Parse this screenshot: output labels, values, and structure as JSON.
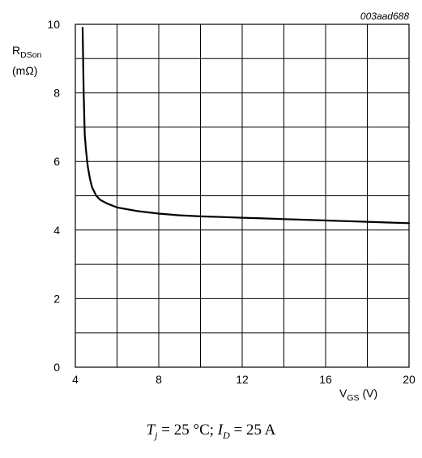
{
  "chart_data": {
    "type": "line",
    "reference_code": "003aad688",
    "ylabel": {
      "symbol": "R",
      "subscript": "DSon",
      "unit": "(mΩ)"
    },
    "xlabel": {
      "symbol": "V",
      "subscript": "GS",
      "unit": "(V)"
    },
    "xlim": [
      4,
      20
    ],
    "ylim": [
      0,
      10
    ],
    "x_ticks": [
      "4",
      "8",
      "12",
      "16",
      "20"
    ],
    "y_ticks": [
      "0",
      "2",
      "4",
      "6",
      "8",
      "10"
    ],
    "grid": true,
    "series": [
      {
        "x": [
          4.35,
          4.4,
          4.45,
          4.5,
          4.55,
          4.6,
          4.7,
          4.8,
          5.0,
          5.2,
          5.5,
          6.0,
          7.0,
          8.0,
          9.0,
          10.0,
          11.0,
          12.0,
          13.0,
          14.0,
          15.0,
          16.0,
          17.0,
          18.0,
          19.0,
          20.0
        ],
        "y": [
          9.9,
          8.0,
          6.8,
          6.4,
          6.1,
          5.85,
          5.5,
          5.25,
          5.0,
          4.88,
          4.78,
          4.66,
          4.55,
          4.48,
          4.43,
          4.4,
          4.38,
          4.36,
          4.34,
          4.32,
          4.3,
          4.28,
          4.26,
          4.24,
          4.22,
          4.2
        ]
      }
    ]
  },
  "caption": {
    "tj_symbol": "T",
    "tj_sub": "j",
    "tj_value": " = 25 °C; ",
    "id_symbol": "I",
    "id_sub": "D",
    "id_value": " = 25 A"
  }
}
